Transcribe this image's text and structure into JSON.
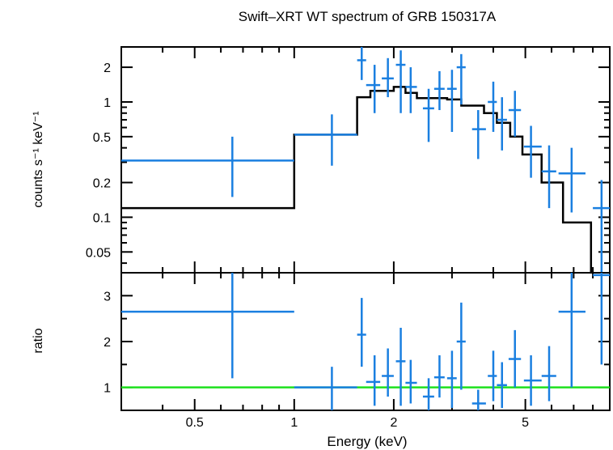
{
  "chart_data": {
    "type": "scatter",
    "title": "Swift–XRT WT spectrum of GRB 150317A",
    "xlabel": "Energy (keV)",
    "xscale": "log",
    "xlim": [
      0.3,
      9.0
    ],
    "x_ticks": [
      {
        "value": 0.5,
        "label": "0.5"
      },
      {
        "value": 1,
        "label": "1"
      },
      {
        "value": 2,
        "label": "2"
      },
      {
        "value": 5,
        "label": "5"
      }
    ],
    "colors": {
      "data": "#1a7fe0",
      "model": "#000000",
      "unity": "#1ee11e",
      "axes": "#000000"
    },
    "panels": [
      {
        "id": "spectrum",
        "ylabel": "counts s⁻¹ keV⁻¹",
        "yscale": "log",
        "ylim": [
          0.033,
          3.0
        ],
        "y_ticks": [
          {
            "value": 0.05,
            "label": "0.05"
          },
          {
            "value": 0.1,
            "label": "0.1"
          },
          {
            "value": 0.2,
            "label": "0.2"
          },
          {
            "value": 0.5,
            "label": "0.5"
          },
          {
            "value": 1,
            "label": "1"
          },
          {
            "value": 2,
            "label": "2"
          }
        ],
        "data": [
          {
            "x": 0.65,
            "xlo": 0.3,
            "xhi": 1.0,
            "y": 0.31,
            "ylo": 0.15,
            "yhi": 0.5
          },
          {
            "x": 1.3,
            "xlo": 1.0,
            "xhi": 1.55,
            "y": 0.52,
            "ylo": 0.28,
            "yhi": 0.78
          },
          {
            "x": 1.6,
            "xlo": 1.55,
            "xhi": 1.65,
            "y": 2.3,
            "ylo": 1.55,
            "yhi": 3.0
          },
          {
            "x": 1.75,
            "xlo": 1.65,
            "xhi": 1.82,
            "y": 1.4,
            "ylo": 0.8,
            "yhi": 2.1
          },
          {
            "x": 1.92,
            "xlo": 1.84,
            "xhi": 2.0,
            "y": 1.6,
            "ylo": 1.1,
            "yhi": 2.4
          },
          {
            "x": 2.1,
            "xlo": 2.03,
            "xhi": 2.17,
            "y": 2.1,
            "ylo": 0.8,
            "yhi": 2.8
          },
          {
            "x": 2.25,
            "xlo": 2.17,
            "xhi": 2.35,
            "y": 1.35,
            "ylo": 0.8,
            "yhi": 2.0
          },
          {
            "x": 2.55,
            "xlo": 2.45,
            "xhi": 2.65,
            "y": 0.88,
            "ylo": 0.45,
            "yhi": 1.3
          },
          {
            "x": 2.75,
            "xlo": 2.65,
            "xhi": 2.85,
            "y": 1.3,
            "ylo": 0.85,
            "yhi": 1.85
          },
          {
            "x": 3.0,
            "xlo": 2.9,
            "xhi": 3.1,
            "y": 1.3,
            "ylo": 0.55,
            "yhi": 1.9
          },
          {
            "x": 3.2,
            "xlo": 3.1,
            "xhi": 3.3,
            "y": 2.0,
            "ylo": 0.95,
            "yhi": 2.6
          },
          {
            "x": 3.6,
            "xlo": 3.45,
            "xhi": 3.8,
            "y": 0.58,
            "ylo": 0.32,
            "yhi": 0.85
          },
          {
            "x": 4.0,
            "xlo": 3.85,
            "xhi": 4.1,
            "y": 1.0,
            "ylo": 0.55,
            "yhi": 1.5
          },
          {
            "x": 4.25,
            "xlo": 4.1,
            "xhi": 4.4,
            "y": 0.7,
            "ylo": 0.38,
            "yhi": 1.1
          },
          {
            "x": 4.65,
            "xlo": 4.45,
            "xhi": 4.85,
            "y": 0.85,
            "ylo": 0.5,
            "yhi": 1.25
          },
          {
            "x": 5.2,
            "xlo": 4.95,
            "xhi": 5.6,
            "y": 0.41,
            "ylo": 0.22,
            "yhi": 0.62
          },
          {
            "x": 5.9,
            "xlo": 5.6,
            "xhi": 6.2,
            "y": 0.25,
            "ylo": 0.12,
            "yhi": 0.42
          },
          {
            "x": 6.9,
            "xlo": 6.3,
            "xhi": 7.6,
            "y": 0.24,
            "ylo": 0.11,
            "yhi": 0.4
          },
          {
            "x": 8.5,
            "xlo": 8.0,
            "xhi": 9.0,
            "y": 0.12,
            "ylo": 0.033,
            "yhi": 0.21
          }
        ],
        "model": [
          [
            0.3,
            0.12
          ],
          [
            1.0,
            0.12
          ],
          [
            1.0,
            0.52
          ],
          [
            1.55,
            0.52
          ],
          [
            1.55,
            1.1
          ],
          [
            1.7,
            1.1
          ],
          [
            1.7,
            1.25
          ],
          [
            2.0,
            1.25
          ],
          [
            2.0,
            1.35
          ],
          [
            2.17,
            1.35
          ],
          [
            2.17,
            1.2
          ],
          [
            2.35,
            1.2
          ],
          [
            2.35,
            1.08
          ],
          [
            2.9,
            1.08
          ],
          [
            2.9,
            1.05
          ],
          [
            3.2,
            1.05
          ],
          [
            3.2,
            0.93
          ],
          [
            3.75,
            0.93
          ],
          [
            3.75,
            0.8
          ],
          [
            4.1,
            0.8
          ],
          [
            4.1,
            0.66
          ],
          [
            4.5,
            0.66
          ],
          [
            4.5,
            0.5
          ],
          [
            4.9,
            0.5
          ],
          [
            4.9,
            0.35
          ],
          [
            5.6,
            0.35
          ],
          [
            5.6,
            0.2
          ],
          [
            6.5,
            0.2
          ],
          [
            6.5,
            0.09
          ],
          [
            7.9,
            0.09
          ],
          [
            7.9,
            0.033
          ]
        ]
      },
      {
        "id": "ratio",
        "ylabel": "ratio",
        "yscale": "linear",
        "ylim": [
          0.5,
          3.5
        ],
        "y_ticks": [
          {
            "value": 1,
            "label": "1"
          },
          {
            "value": 2,
            "label": "2"
          },
          {
            "value": 3,
            "label": "3"
          }
        ],
        "unity": 1,
        "data": [
          {
            "x": 0.65,
            "xlo": 0.3,
            "xhi": 1.0,
            "y": 2.65,
            "ylo": 1.2,
            "yhi": 3.5
          },
          {
            "x": 1.3,
            "xlo": 1.0,
            "xhi": 1.55,
            "y": 1.0,
            "ylo": 0.5,
            "yhi": 1.45
          },
          {
            "x": 1.6,
            "xlo": 1.55,
            "xhi": 1.65,
            "y": 2.15,
            "ylo": 1.45,
            "yhi": 2.95
          },
          {
            "x": 1.75,
            "xlo": 1.65,
            "xhi": 1.82,
            "y": 1.12,
            "ylo": 0.6,
            "yhi": 1.7
          },
          {
            "x": 1.92,
            "xlo": 1.84,
            "xhi": 2.0,
            "y": 1.25,
            "ylo": 0.8,
            "yhi": 1.85
          },
          {
            "x": 2.1,
            "xlo": 2.03,
            "xhi": 2.17,
            "y": 1.57,
            "ylo": 0.6,
            "yhi": 2.3
          },
          {
            "x": 2.25,
            "xlo": 2.17,
            "xhi": 2.35,
            "y": 1.1,
            "ylo": 0.65,
            "yhi": 1.6
          },
          {
            "x": 2.55,
            "xlo": 2.45,
            "xhi": 2.65,
            "y": 0.8,
            "ylo": 0.5,
            "yhi": 1.2
          },
          {
            "x": 2.75,
            "xlo": 2.65,
            "xhi": 2.85,
            "y": 1.22,
            "ylo": 0.78,
            "yhi": 1.7
          },
          {
            "x": 3.0,
            "xlo": 2.9,
            "xhi": 3.1,
            "y": 1.2,
            "ylo": 0.55,
            "yhi": 1.8
          },
          {
            "x": 3.2,
            "xlo": 3.1,
            "xhi": 3.3,
            "y": 2.0,
            "ylo": 0.95,
            "yhi": 2.85
          },
          {
            "x": 3.6,
            "xlo": 3.45,
            "xhi": 3.8,
            "y": 0.65,
            "ylo": 0.5,
            "yhi": 0.95
          },
          {
            "x": 4.0,
            "xlo": 3.85,
            "xhi": 4.1,
            "y": 1.25,
            "ylo": 0.7,
            "yhi": 1.8
          },
          {
            "x": 4.25,
            "xlo": 4.1,
            "xhi": 4.4,
            "y": 1.05,
            "ylo": 0.55,
            "yhi": 1.55
          },
          {
            "x": 4.65,
            "xlo": 4.45,
            "xhi": 4.85,
            "y": 1.62,
            "ylo": 1.0,
            "yhi": 2.25
          },
          {
            "x": 5.2,
            "xlo": 4.95,
            "xhi": 5.6,
            "y": 1.15,
            "ylo": 0.6,
            "yhi": 1.7
          },
          {
            "x": 5.9,
            "xlo": 5.6,
            "xhi": 6.2,
            "y": 1.25,
            "ylo": 0.7,
            "yhi": 1.9
          },
          {
            "x": 6.9,
            "xlo": 6.3,
            "xhi": 7.6,
            "y": 2.65,
            "ylo": 1.0,
            "yhi": 3.5
          },
          {
            "x": 8.5,
            "xlo": 8.0,
            "xhi": 9.0,
            "y": 3.45,
            "ylo": 1.5,
            "yhi": 3.5
          }
        ]
      }
    ]
  }
}
